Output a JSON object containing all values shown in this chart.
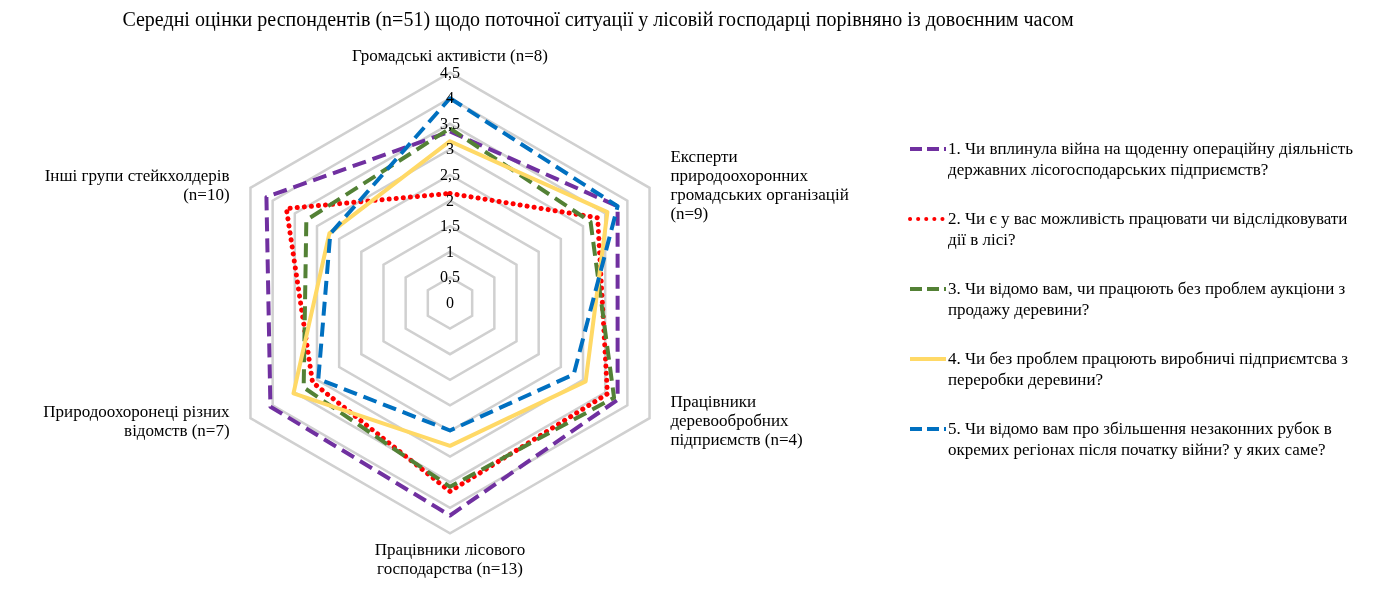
{
  "chart_data": {
    "type": "radar",
    "title": "Середні оцінки респондентів (n=51) щодо поточної ситуації у лісовій господарці порівняно із довоєнним часом",
    "categories": [
      "Громадські активісти (n=8)",
      "Експерти природоохоронних громадських організацій (n=9)",
      "Працівники деревообробних підприємств (n=4)",
      "Працівники лісового господарства (n=13)",
      "Природоохоронеці різних відомств (n=7)",
      "Інші групи стейкхолдерів (n=10)"
    ],
    "series": [
      {
        "name": "1. Чи вплинула війна на щоденну операційну діяльність державних лісогосподарських підприємств?",
        "color": "#7030a0",
        "line_style": "dashed",
        "values": [
          3.35,
          3.78,
          3.78,
          4.15,
          4.05,
          4.14
        ]
      },
      {
        "name": "2. Чи є у вас можливість працювати чи відслідковувати дії в лісі?",
        "color": "#ff0000",
        "line_style": "dotted",
        "values": [
          2.14,
          3.33,
          3.55,
          3.68,
          3.1,
          3.69
        ]
      },
      {
        "name": "3. Чи відомо вам, чи працюють без проблем аукціони з продажу деревини?",
        "color": "#538135",
        "line_style": "dashed",
        "values": [
          3.41,
          3.17,
          3.7,
          3.59,
          3.3,
          3.24
        ]
      },
      {
        "name": "4. Чи без проблем працюють виробничі підприємтсва з переробки деревини?",
        "color": "#ffd966",
        "line_style": "solid",
        "values": [
          3.16,
          3.55,
          3.06,
          2.79,
          3.53,
          2.72
        ]
      },
      {
        "name": "5. Чи відомо вам про збільшення незаконних рубок в окремих регіонах після початку війни? у яких саме?",
        "color": "#0070c0",
        "line_style": "dashed",
        "values": [
          4.0,
          3.78,
          2.79,
          2.49,
          2.97,
          2.7
        ]
      }
    ],
    "ylim": [
      0,
      4.5
    ],
    "yticks": [
      {
        "value": 0,
        "label": "0"
      },
      {
        "value": 0.5,
        "label": "0,5"
      },
      {
        "value": 1,
        "label": "1"
      },
      {
        "value": 1.5,
        "label": "1,5"
      },
      {
        "value": 2,
        "label": "2"
      },
      {
        "value": 2.5,
        "label": "2,5"
      },
      {
        "value": 3,
        "label": "3"
      },
      {
        "value": 3.5,
        "label": "3,5"
      },
      {
        "value": 4,
        "label": "4"
      },
      {
        "value": 4.5,
        "label": "4,5"
      }
    ],
    "grid": true,
    "legend": "right",
    "marker": "none"
  }
}
